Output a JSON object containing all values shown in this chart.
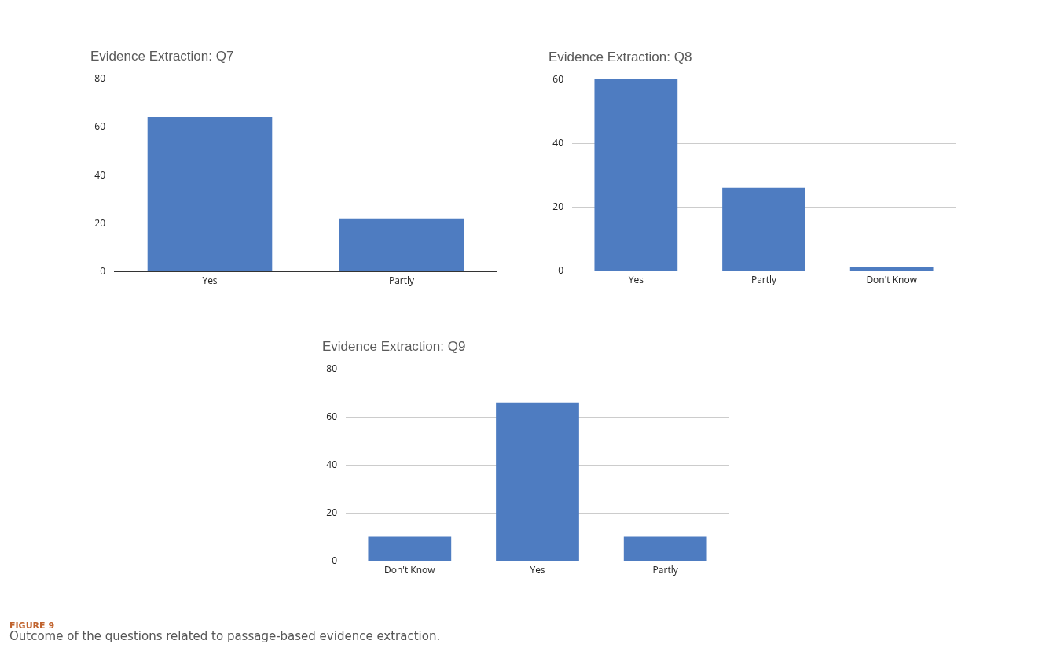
{
  "chart_data": [
    {
      "type": "bar",
      "title": "Evidence Extraction: Q7",
      "categories": [
        "Yes",
        "Partly"
      ],
      "values": [
        64,
        22
      ],
      "color": "#4e7cc1",
      "ylim": [
        0,
        80
      ],
      "yticks": [
        0,
        20,
        40,
        60,
        80
      ],
      "grid": "y"
    },
    {
      "type": "bar",
      "title": "Evidence Extraction: Q8",
      "categories": [
        "Yes",
        "Partly",
        "Don't Know"
      ],
      "values": [
        60,
        26,
        1
      ],
      "color": "#4e7cc1",
      "ylim": [
        0,
        60
      ],
      "yticks": [
        0,
        20,
        40,
        60
      ],
      "grid": "y"
    },
    {
      "type": "bar",
      "title": "Evidence Extraction: Q9",
      "categories": [
        "Don't Know",
        "Yes",
        "Partly"
      ],
      "values": [
        10,
        66,
        10
      ],
      "color": "#4e7cc1",
      "ylim": [
        0,
        80
      ],
      "yticks": [
        0,
        20,
        40,
        60,
        80
      ],
      "grid": "y",
      "annotations": [
        "FIGURE 9",
        "Outcome of the questions related to passage-based evidence extraction."
      ]
    }
  ]
}
